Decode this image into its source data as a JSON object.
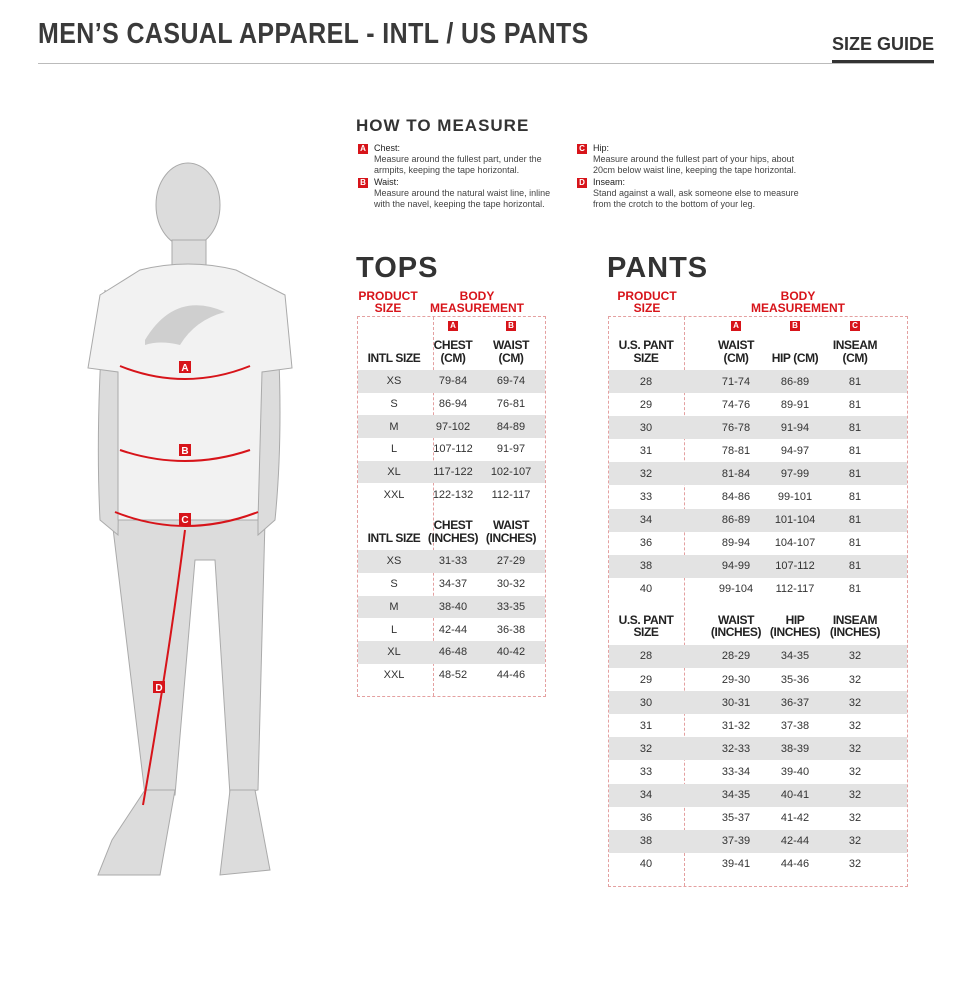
{
  "header": {
    "title": "MEN’S CASUAL APPAREL - INTL / US PANTS",
    "size_guide": "SIZE GUIDE"
  },
  "how_to_measure": {
    "title": "HOW TO MEASURE",
    "items": [
      {
        "badge": "A",
        "label": "Chest:",
        "text": "Measure around the fullest part, under the armpits, keeping the tape horizontal."
      },
      {
        "badge": "B",
        "label": "Waist:",
        "text": "Measure around the natural waist line, inline with the navel, keeping the tape horizontal."
      },
      {
        "badge": "C",
        "label": "Hip:",
        "text": "Measure around the fullest part of your hips, about 20cm below waist line, keeping the tape horizontal."
      },
      {
        "badge": "D",
        "label": "Inseam:",
        "text": "Stand against a wall, ask someone else to measure from the crotch to the bottom of your leg."
      }
    ]
  },
  "figure": {
    "markers": [
      "A",
      "B",
      "C",
      "D"
    ]
  },
  "colors": {
    "accent": "#d7141a",
    "row_alt": "#e3e3e3"
  },
  "tops": {
    "title": "TOPS",
    "product_size": "PRODUCT SIZE",
    "body_measurement": "BODY MEASUREMENT",
    "cm": {
      "badges": [
        "",
        "A",
        "B"
      ],
      "headers": [
        "INTL SIZE",
        "CHEST (CM)",
        "WAIST (CM)"
      ],
      "rows": [
        [
          "XS",
          "79-84",
          "69-74"
        ],
        [
          "S",
          "86-94",
          "76-81"
        ],
        [
          "M",
          "97-102",
          "84-89"
        ],
        [
          "L",
          "107-112",
          "91-97"
        ],
        [
          "XL",
          "117-122",
          "102-107"
        ],
        [
          "XXL",
          "122-132",
          "112-117"
        ]
      ]
    },
    "inches": {
      "badges": [
        "",
        "",
        ""
      ],
      "headers": [
        "INTL SIZE",
        "CHEST (INCHES)",
        "WAIST (INCHES)"
      ],
      "rows": [
        [
          "XS",
          "31-33",
          "27-29"
        ],
        [
          "S",
          "34-37",
          "30-32"
        ],
        [
          "M",
          "38-40",
          "33-35"
        ],
        [
          "L",
          "42-44",
          "36-38"
        ],
        [
          "XL",
          "46-48",
          "40-42"
        ],
        [
          "XXL",
          "48-52",
          "44-46"
        ]
      ]
    }
  },
  "pants": {
    "title": "PANTS",
    "product_size": "PRODUCT SIZE",
    "body_measurement": "BODY MEASUREMENT",
    "cm": {
      "badges": [
        "",
        "A",
        "B",
        "C"
      ],
      "headers": [
        "U.S. PANT SIZE",
        "WAIST (CM)",
        "HIP (CM)",
        "INSEAM (CM)"
      ],
      "rows": [
        [
          "28",
          "71-74",
          "86-89",
          "81"
        ],
        [
          "29",
          "74-76",
          "89-91",
          "81"
        ],
        [
          "30",
          "76-78",
          "91-94",
          "81"
        ],
        [
          "31",
          "78-81",
          "94-97",
          "81"
        ],
        [
          "32",
          "81-84",
          "97-99",
          "81"
        ],
        [
          "33",
          "84-86",
          "99-101",
          "81"
        ],
        [
          "34",
          "86-89",
          "101-104",
          "81"
        ],
        [
          "36",
          "89-94",
          "104-107",
          "81"
        ],
        [
          "38",
          "94-99",
          "107-112",
          "81"
        ],
        [
          "40",
          "99-104",
          "112-117",
          "81"
        ]
      ]
    },
    "inches": {
      "badges": [
        "",
        "",
        "",
        ""
      ],
      "headers": [
        "U.S. PANT SIZE",
        "WAIST (INCHES)",
        "HIP (INCHES)",
        "INSEAM (INCHES)"
      ],
      "rows": [
        [
          "28",
          "28-29",
          "34-35",
          "32"
        ],
        [
          "29",
          "29-30",
          "35-36",
          "32"
        ],
        [
          "30",
          "30-31",
          "36-37",
          "32"
        ],
        [
          "31",
          "31-32",
          "37-38",
          "32"
        ],
        [
          "32",
          "32-33",
          "38-39",
          "32"
        ],
        [
          "33",
          "33-34",
          "39-40",
          "32"
        ],
        [
          "34",
          "34-35",
          "40-41",
          "32"
        ],
        [
          "36",
          "35-37",
          "41-42",
          "32"
        ],
        [
          "38",
          "37-39",
          "42-44",
          "32"
        ],
        [
          "40",
          "39-41",
          "44-46",
          "32"
        ]
      ]
    }
  }
}
